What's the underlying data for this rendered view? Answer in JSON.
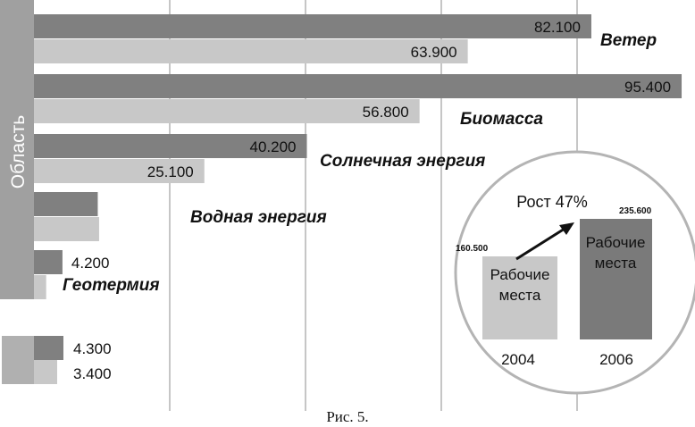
{
  "chart_data": {
    "type": "bar",
    "orientation": "horizontal",
    "ylabel": "Область",
    "xlim": [
      0,
      100
    ],
    "grid": true,
    "categories": [
      "Ветер",
      "Биомасса",
      "Солнечная энергия",
      "Водная энергия",
      "Геотермия"
    ],
    "series": [
      {
        "color": "#808080",
        "values": [
          82.1,
          95.4,
          40.2,
          9.4,
          4.2
        ],
        "labels": [
          "82.100",
          "95.400",
          "40.200",
          "",
          "4.200"
        ]
      },
      {
        "color": "#c8c8c8",
        "values": [
          63.9,
          56.8,
          25.1,
          9.6,
          1.8
        ],
        "labels": [
          "63.900",
          "56.800",
          "25.100",
          "",
          ""
        ]
      }
    ],
    "legend": {
      "placement": "bottom-left",
      "entries": [
        {
          "label": "4.300",
          "color": "#808080",
          "value": 4.3
        },
        {
          "label": "3.400",
          "color": "#c8c8c8",
          "value": 3.4
        }
      ]
    },
    "inset": {
      "type": "bar",
      "title": "Рост 47%",
      "categories": [
        "2004",
        "2006"
      ],
      "values": [
        160.5,
        235.6
      ],
      "value_labels": [
        "160.500",
        "235.600"
      ],
      "bar_text": [
        "Рабочие",
        "места"
      ],
      "colors": [
        "#c8c8c8",
        "#7a7a7a"
      ]
    }
  },
  "caption": "Рис. 5."
}
